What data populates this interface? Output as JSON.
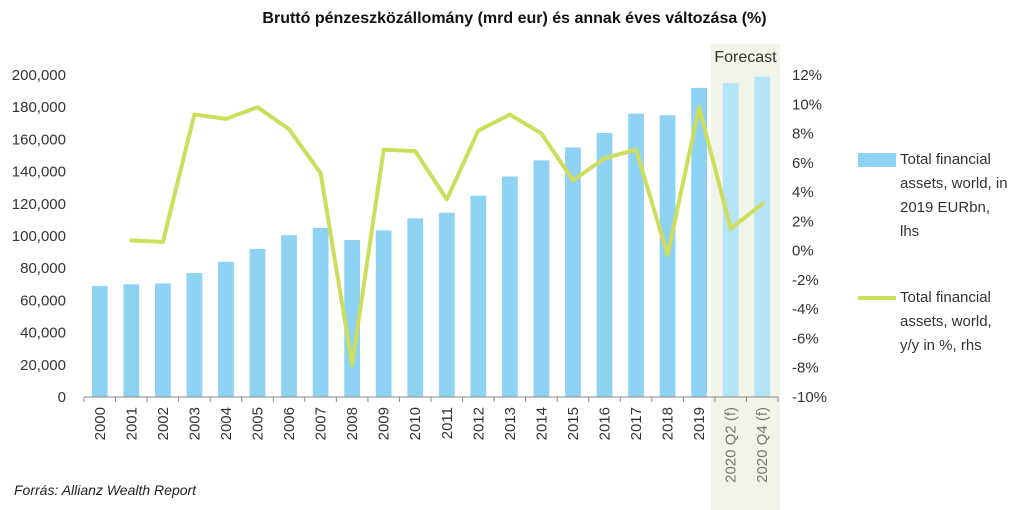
{
  "chart_data": {
    "type": "bar",
    "title": "Bruttó pénzeszközállomány (mrd eur) és annak éves változása (%)",
    "categories": [
      "2000",
      "2001",
      "2002",
      "2003",
      "2004",
      "2005",
      "2006",
      "2007",
      "2008",
      "2009",
      "2010",
      "2011",
      "2012",
      "2013",
      "2014",
      "2015",
      "2016",
      "2017",
      "2018",
      "2019",
      "2020 Q2 (f)",
      "2020 Q4 (f)"
    ],
    "series": [
      {
        "name": "Total financial assets, world, in 2019 EURbn, lhs",
        "axis": "left",
        "type": "bar",
        "color": "#8FD3F4",
        "forecast_color": "#B5E3F8",
        "values": [
          69000,
          70000,
          70500,
          77000,
          84000,
          92000,
          100500,
          105000,
          97500,
          103500,
          111000,
          114500,
          125000,
          137000,
          147000,
          155000,
          164000,
          176000,
          175000,
          192000,
          195000,
          199000
        ]
      },
      {
        "name": "Total financial assets, world, y/y in %, rhs",
        "axis": "right",
        "type": "line",
        "color": "#CDDE5C",
        "values": [
          null,
          0.7,
          0.6,
          9.3,
          9.0,
          9.8,
          8.3,
          5.3,
          -7.8,
          6.9,
          6.8,
          3.5,
          8.2,
          9.3,
          8.0,
          4.8,
          6.3,
          6.9,
          -0.3,
          9.8,
          1.5,
          3.2
        ]
      }
    ],
    "left_axis": {
      "ylim": [
        0,
        200000
      ],
      "ticks": [
        "0",
        "20,000",
        "40,000",
        "60,000",
        "80,000",
        "100,000",
        "120,000",
        "140,000",
        "160,000",
        "180,000",
        "200,000"
      ]
    },
    "right_axis": {
      "ylim": [
        -10,
        12
      ],
      "ticks": [
        "-10%",
        "-8%",
        "-6%",
        "-4%",
        "-2%",
        "0%",
        "2%",
        "4%",
        "6%",
        "8%",
        "10%",
        "12%"
      ]
    },
    "forecast_label": "Forecast",
    "forecast_start_index": 20,
    "grid": false,
    "legend_position": "right"
  },
  "legend": {
    "bar_label": "Total financial assets, world, in 2019 EURbn, lhs",
    "line_label": "Total financial assets, world, y/y in %, rhs"
  },
  "source": "Forrás: Allianz Wealth Report"
}
